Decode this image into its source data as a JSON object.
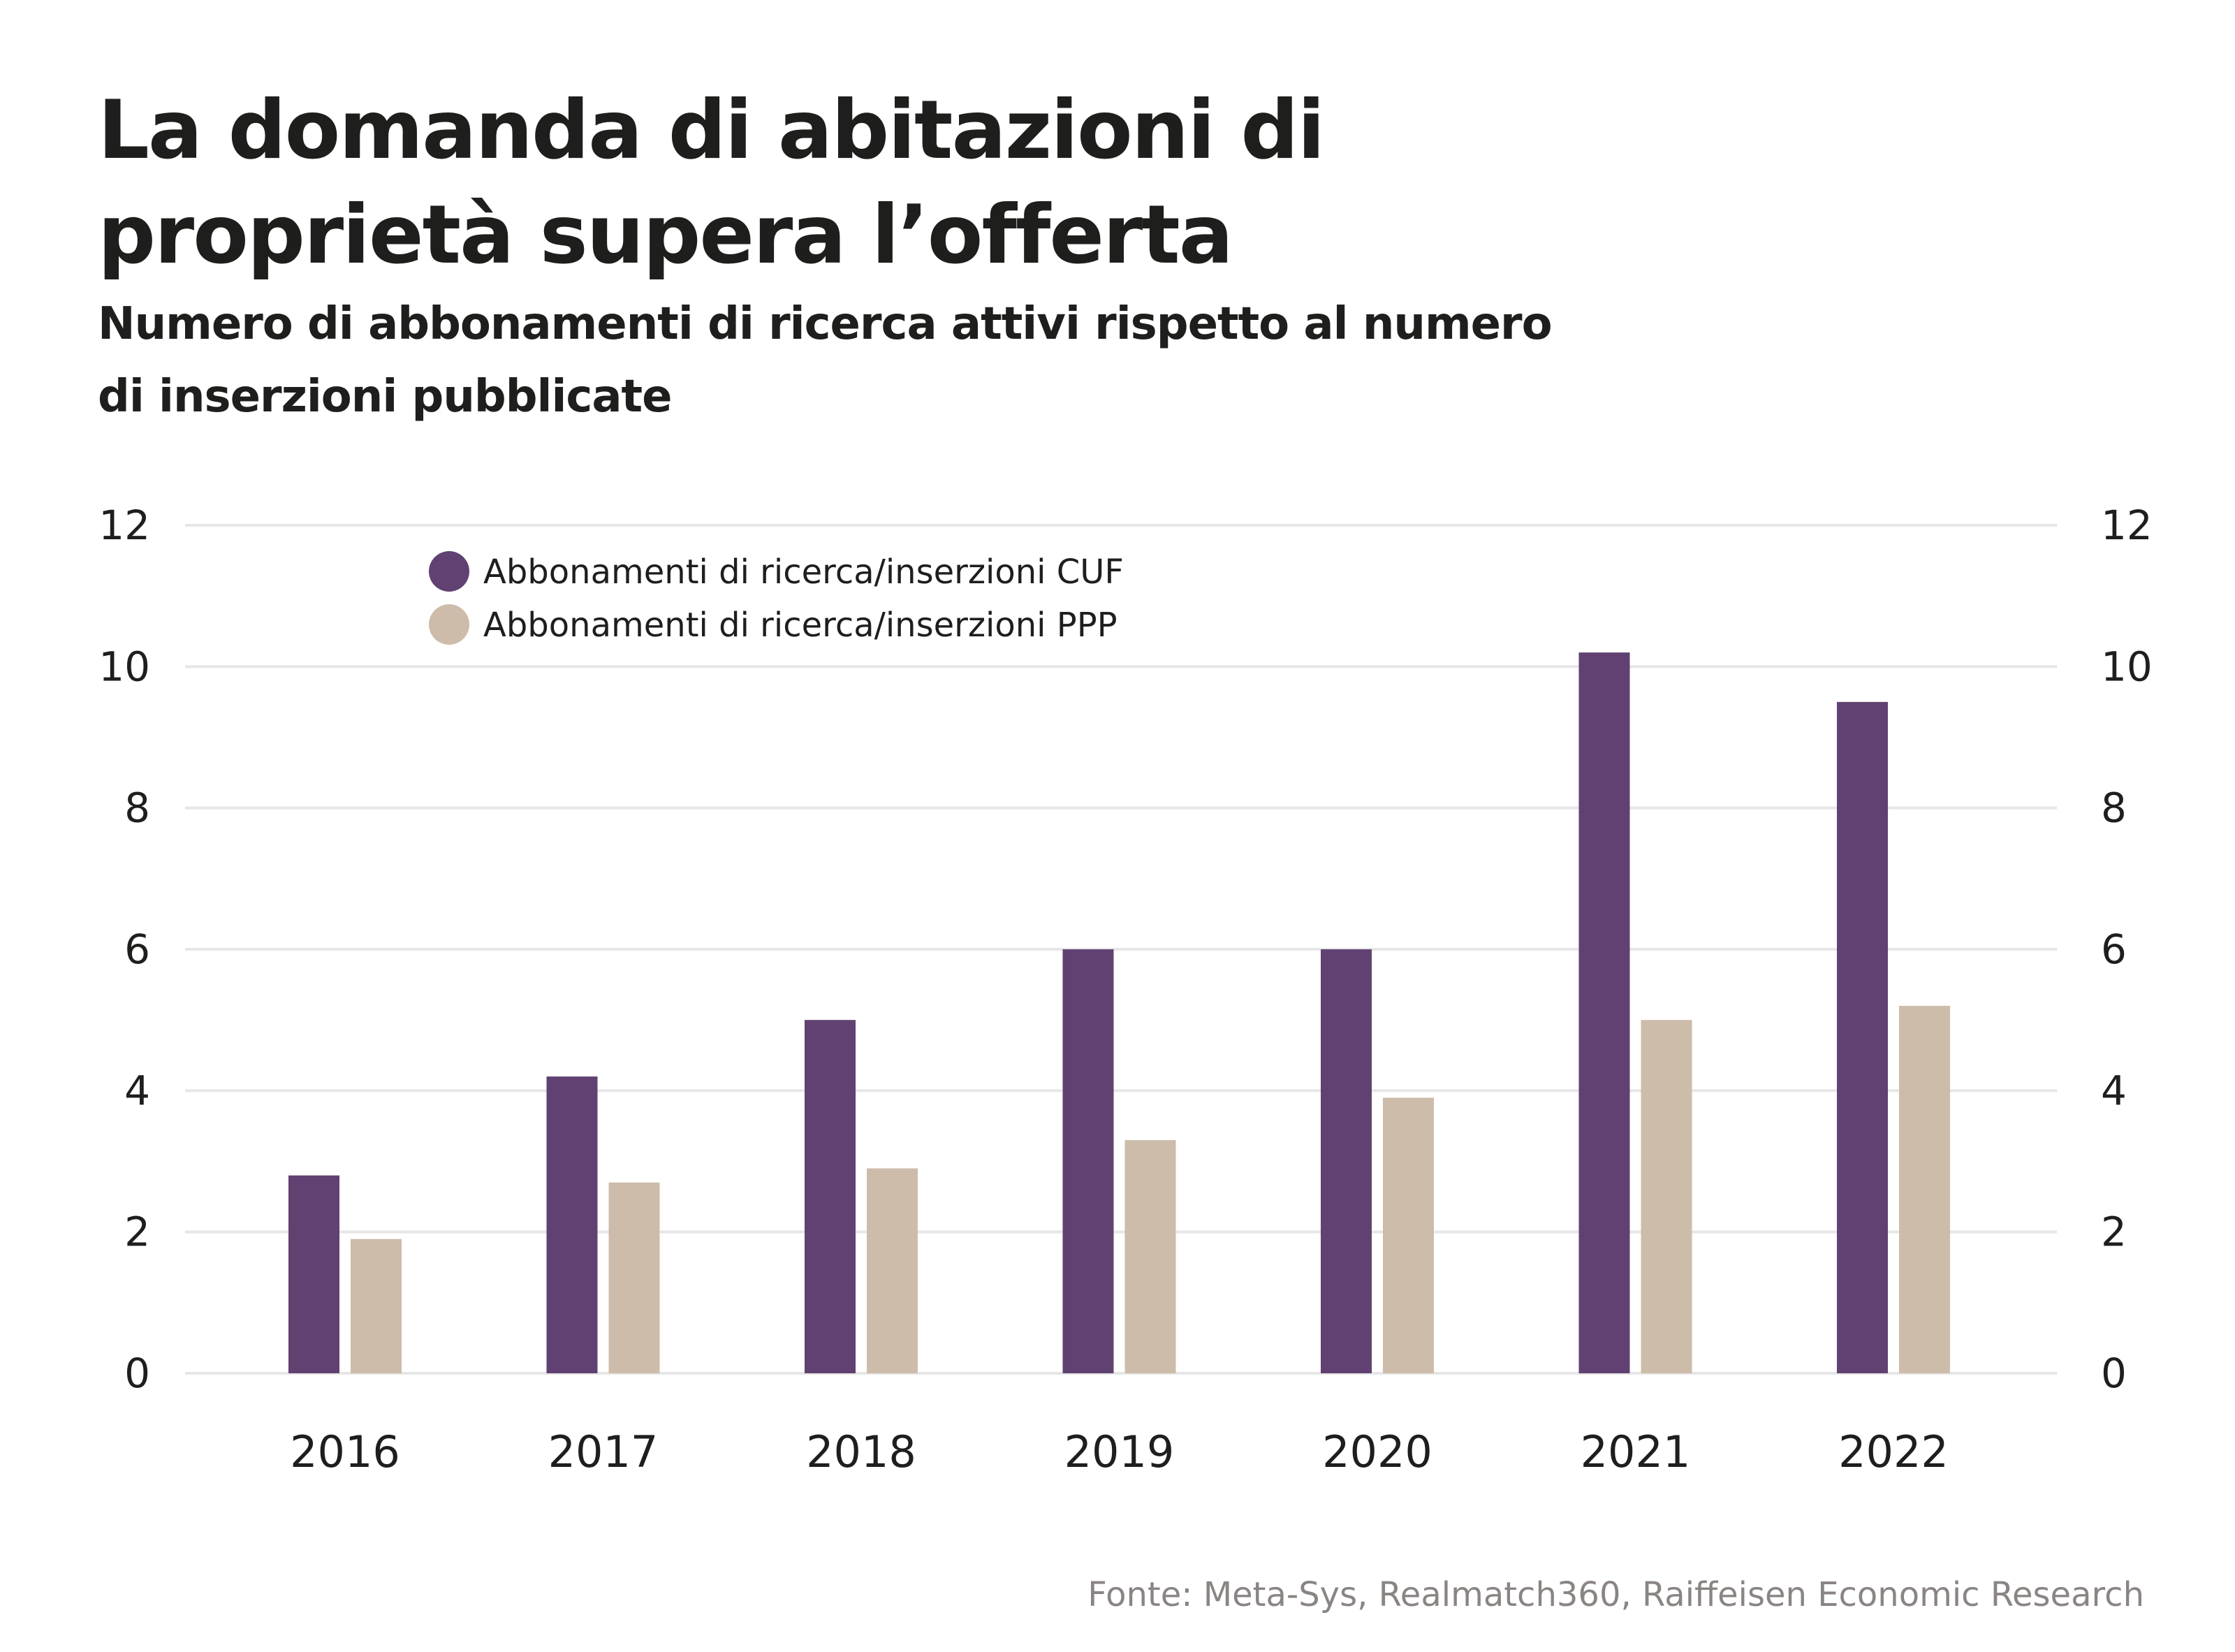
{
  "header": {
    "title_lines": [
      "La domanda di abitazioni di",
      "proprietà supera l’offerta"
    ],
    "subtitle_lines": [
      "Numero di abbonamenti di ricerca attivi rispetto al numero",
      "di inserzioni pubblicate"
    ]
  },
  "footer": {
    "source": "Fonte: Meta-Sys, Realmatch360, Raiffeisen Economic Research"
  },
  "chart_data": {
    "type": "bar",
    "title": "La domanda di abitazioni di proprietà supera l’offerta",
    "subtitle": "Numero di abbonamenti di ricerca attivi rispetto al numero di inserzioni pubblicate",
    "xlabel": "",
    "ylabel": "",
    "categories": [
      "2016",
      "2017",
      "2018",
      "2019",
      "2020",
      "2021",
      "2022"
    ],
    "series": [
      {
        "name": "Abbonamenti di ricerca/inserzioni CUF",
        "color": "#614172",
        "values": [
          2.8,
          4.2,
          5.0,
          6.0,
          6.0,
          10.2,
          9.5
        ]
      },
      {
        "name": "Abbonamenti di ricerca/inserzioni PPP",
        "color": "#cdbcaa",
        "values": [
          1.9,
          2.7,
          2.9,
          3.3,
          3.9,
          5.0,
          5.2
        ]
      }
    ],
    "ylim": [
      0,
      12
    ],
    "yticks": [
      0,
      2,
      4,
      6,
      8,
      10,
      12
    ],
    "ytick_labels": [
      "0",
      "2",
      "4",
      "6",
      "8",
      "10",
      "12"
    ],
    "secondary_yaxis": true,
    "grid": true,
    "gridline_color": "#e6e6e6",
    "legend_position": "top-left",
    "source": "Fonte: Meta-Sys, Realmatch360, Raiffeisen Economic Research"
  }
}
